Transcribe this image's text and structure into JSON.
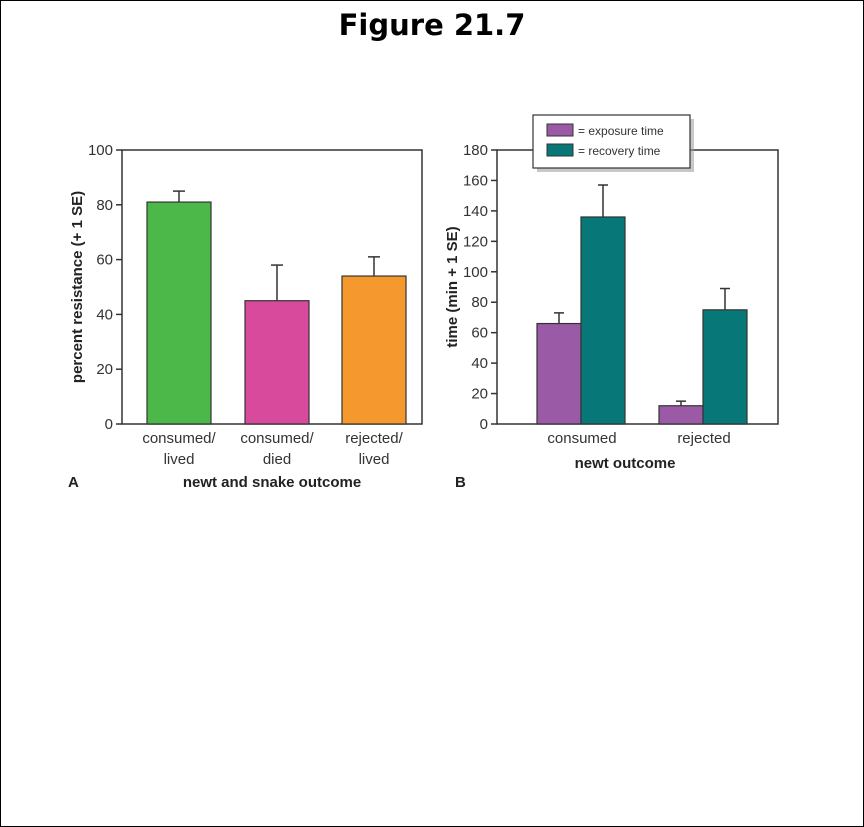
{
  "page": {
    "title": "Figure 21.7"
  },
  "colors": {
    "green": "#4cb84a",
    "magenta": "#d84a9c",
    "orange": "#f5992e",
    "purple": "#9a5aa6",
    "teal": "#077777",
    "axis": "#333333"
  },
  "chart_data": [
    {
      "type": "bar",
      "panel_label": "A",
      "title": "",
      "xlabel": "newt and snake outcome",
      "ylabel": "percent resistance (+ 1 SE)",
      "ylim": [
        0,
        100
      ],
      "yticks": [
        0,
        20,
        40,
        60,
        80,
        100
      ],
      "categories": [
        {
          "line1": "consumed/",
          "line2": "lived"
        },
        {
          "line1": "consumed/",
          "line2": "died"
        },
        {
          "line1": "rejected/",
          "line2": "lived"
        }
      ],
      "values": [
        81,
        45,
        54
      ],
      "errors": [
        4,
        13,
        7
      ],
      "bar_colors": [
        "#4cb84a",
        "#d84a9c",
        "#f5992e"
      ]
    },
    {
      "type": "bar",
      "panel_label": "B",
      "title": "",
      "xlabel": "newt outcome",
      "ylabel": "time (min + 1 SE)",
      "ylim": [
        0,
        180
      ],
      "yticks": [
        0,
        20,
        40,
        60,
        80,
        100,
        120,
        140,
        160,
        180
      ],
      "categories": [
        "consumed",
        "rejected"
      ],
      "legend": {
        "placement": "top-center"
      },
      "series": [
        {
          "name": "= exposure time",
          "color": "#9a5aa6",
          "values": [
            66,
            12
          ],
          "errors": [
            7,
            3
          ]
        },
        {
          "name": "= recovery time",
          "color": "#077777",
          "values": [
            136,
            75
          ],
          "errors": [
            21,
            14
          ]
        }
      ]
    }
  ]
}
